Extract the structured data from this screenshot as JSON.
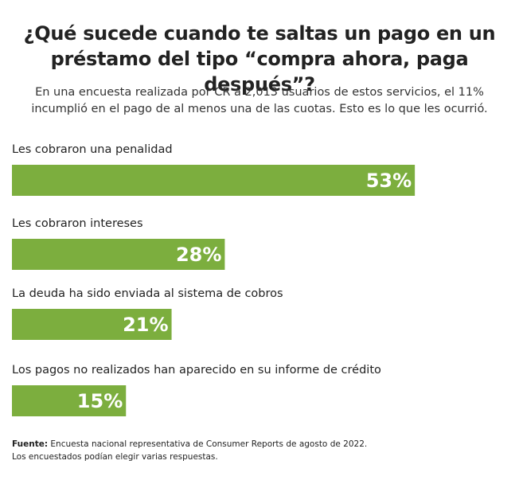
{
  "chart_data": {
    "type": "bar",
    "orientation": "horizontal",
    "title": [
      "¿Qué sucede cuando te saltas un pago en un",
      "préstamo del tipo “compra ahora, paga después”?"
    ],
    "subtitle": [
      "En una encuesta realizada por CR a 2,013 usuarios de estos servicios, el 11%",
      "incumplió en el pago de al menos una de las cuotas. Esto es lo que les ocurrió."
    ],
    "categories": [
      "Les cobraron una penalidad",
      "Les cobraron intereses",
      "La deuda ha sido enviada al sistema de cobros",
      "Los pagos no realizados han aparecido en su informe de crédito"
    ],
    "values": [
      53,
      28,
      21,
      15
    ],
    "value_labels": [
      "53%",
      "28%",
      "21%",
      "15%"
    ],
    "color": "#7cae3e",
    "source_label": "Fuente:",
    "source": "Encuesta nacional representativa de Consumer Reports de agosto de 2022.",
    "note": "Los encuestados podían elegir varias respuestas."
  }
}
